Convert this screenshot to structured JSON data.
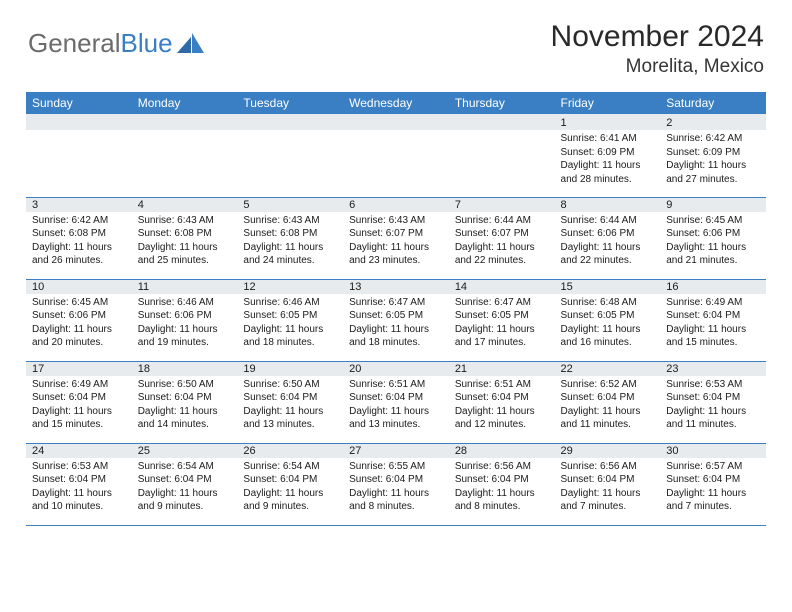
{
  "logo": {
    "part1": "General",
    "part2": "Blue"
  },
  "title": "November 2024",
  "location": "Morelita, Mexico",
  "day_headers": [
    "Sunday",
    "Monday",
    "Tuesday",
    "Wednesday",
    "Thursday",
    "Friday",
    "Saturday"
  ],
  "colors": {
    "header_bg": "#3a7fc4",
    "header_text": "#ffffff",
    "daynum_bg": "#e8ebed",
    "border": "#3a7fc4",
    "logo_gray": "#6b6b6b",
    "logo_blue": "#3a7fc4",
    "text": "#1b1b1b"
  },
  "weeks": [
    [
      {
        "n": "",
        "lines": []
      },
      {
        "n": "",
        "lines": []
      },
      {
        "n": "",
        "lines": []
      },
      {
        "n": "",
        "lines": []
      },
      {
        "n": "",
        "lines": []
      },
      {
        "n": "1",
        "lines": [
          "Sunrise: 6:41 AM",
          "Sunset: 6:09 PM",
          "Daylight: 11 hours and 28 minutes."
        ]
      },
      {
        "n": "2",
        "lines": [
          "Sunrise: 6:42 AM",
          "Sunset: 6:09 PM",
          "Daylight: 11 hours and 27 minutes."
        ]
      }
    ],
    [
      {
        "n": "3",
        "lines": [
          "Sunrise: 6:42 AM",
          "Sunset: 6:08 PM",
          "Daylight: 11 hours and 26 minutes."
        ]
      },
      {
        "n": "4",
        "lines": [
          "Sunrise: 6:43 AM",
          "Sunset: 6:08 PM",
          "Daylight: 11 hours and 25 minutes."
        ]
      },
      {
        "n": "5",
        "lines": [
          "Sunrise: 6:43 AM",
          "Sunset: 6:08 PM",
          "Daylight: 11 hours and 24 minutes."
        ]
      },
      {
        "n": "6",
        "lines": [
          "Sunrise: 6:43 AM",
          "Sunset: 6:07 PM",
          "Daylight: 11 hours and 23 minutes."
        ]
      },
      {
        "n": "7",
        "lines": [
          "Sunrise: 6:44 AM",
          "Sunset: 6:07 PM",
          "Daylight: 11 hours and 22 minutes."
        ]
      },
      {
        "n": "8",
        "lines": [
          "Sunrise: 6:44 AM",
          "Sunset: 6:06 PM",
          "Daylight: 11 hours and 22 minutes."
        ]
      },
      {
        "n": "9",
        "lines": [
          "Sunrise: 6:45 AM",
          "Sunset: 6:06 PM",
          "Daylight: 11 hours and 21 minutes."
        ]
      }
    ],
    [
      {
        "n": "10",
        "lines": [
          "Sunrise: 6:45 AM",
          "Sunset: 6:06 PM",
          "Daylight: 11 hours and 20 minutes."
        ]
      },
      {
        "n": "11",
        "lines": [
          "Sunrise: 6:46 AM",
          "Sunset: 6:06 PM",
          "Daylight: 11 hours and 19 minutes."
        ]
      },
      {
        "n": "12",
        "lines": [
          "Sunrise: 6:46 AM",
          "Sunset: 6:05 PM",
          "Daylight: 11 hours and 18 minutes."
        ]
      },
      {
        "n": "13",
        "lines": [
          "Sunrise: 6:47 AM",
          "Sunset: 6:05 PM",
          "Daylight: 11 hours and 18 minutes."
        ]
      },
      {
        "n": "14",
        "lines": [
          "Sunrise: 6:47 AM",
          "Sunset: 6:05 PM",
          "Daylight: 11 hours and 17 minutes."
        ]
      },
      {
        "n": "15",
        "lines": [
          "Sunrise: 6:48 AM",
          "Sunset: 6:05 PM",
          "Daylight: 11 hours and 16 minutes."
        ]
      },
      {
        "n": "16",
        "lines": [
          "Sunrise: 6:49 AM",
          "Sunset: 6:04 PM",
          "Daylight: 11 hours and 15 minutes."
        ]
      }
    ],
    [
      {
        "n": "17",
        "lines": [
          "Sunrise: 6:49 AM",
          "Sunset: 6:04 PM",
          "Daylight: 11 hours and 15 minutes."
        ]
      },
      {
        "n": "18",
        "lines": [
          "Sunrise: 6:50 AM",
          "Sunset: 6:04 PM",
          "Daylight: 11 hours and 14 minutes."
        ]
      },
      {
        "n": "19",
        "lines": [
          "Sunrise: 6:50 AM",
          "Sunset: 6:04 PM",
          "Daylight: 11 hours and 13 minutes."
        ]
      },
      {
        "n": "20",
        "lines": [
          "Sunrise: 6:51 AM",
          "Sunset: 6:04 PM",
          "Daylight: 11 hours and 13 minutes."
        ]
      },
      {
        "n": "21",
        "lines": [
          "Sunrise: 6:51 AM",
          "Sunset: 6:04 PM",
          "Daylight: 11 hours and 12 minutes."
        ]
      },
      {
        "n": "22",
        "lines": [
          "Sunrise: 6:52 AM",
          "Sunset: 6:04 PM",
          "Daylight: 11 hours and 11 minutes."
        ]
      },
      {
        "n": "23",
        "lines": [
          "Sunrise: 6:53 AM",
          "Sunset: 6:04 PM",
          "Daylight: 11 hours and 11 minutes."
        ]
      }
    ],
    [
      {
        "n": "24",
        "lines": [
          "Sunrise: 6:53 AM",
          "Sunset: 6:04 PM",
          "Daylight: 11 hours and 10 minutes."
        ]
      },
      {
        "n": "25",
        "lines": [
          "Sunrise: 6:54 AM",
          "Sunset: 6:04 PM",
          "Daylight: 11 hours and 9 minutes."
        ]
      },
      {
        "n": "26",
        "lines": [
          "Sunrise: 6:54 AM",
          "Sunset: 6:04 PM",
          "Daylight: 11 hours and 9 minutes."
        ]
      },
      {
        "n": "27",
        "lines": [
          "Sunrise: 6:55 AM",
          "Sunset: 6:04 PM",
          "Daylight: 11 hours and 8 minutes."
        ]
      },
      {
        "n": "28",
        "lines": [
          "Sunrise: 6:56 AM",
          "Sunset: 6:04 PM",
          "Daylight: 11 hours and 8 minutes."
        ]
      },
      {
        "n": "29",
        "lines": [
          "Sunrise: 6:56 AM",
          "Sunset: 6:04 PM",
          "Daylight: 11 hours and 7 minutes."
        ]
      },
      {
        "n": "30",
        "lines": [
          "Sunrise: 6:57 AM",
          "Sunset: 6:04 PM",
          "Daylight: 11 hours and 7 minutes."
        ]
      }
    ]
  ]
}
